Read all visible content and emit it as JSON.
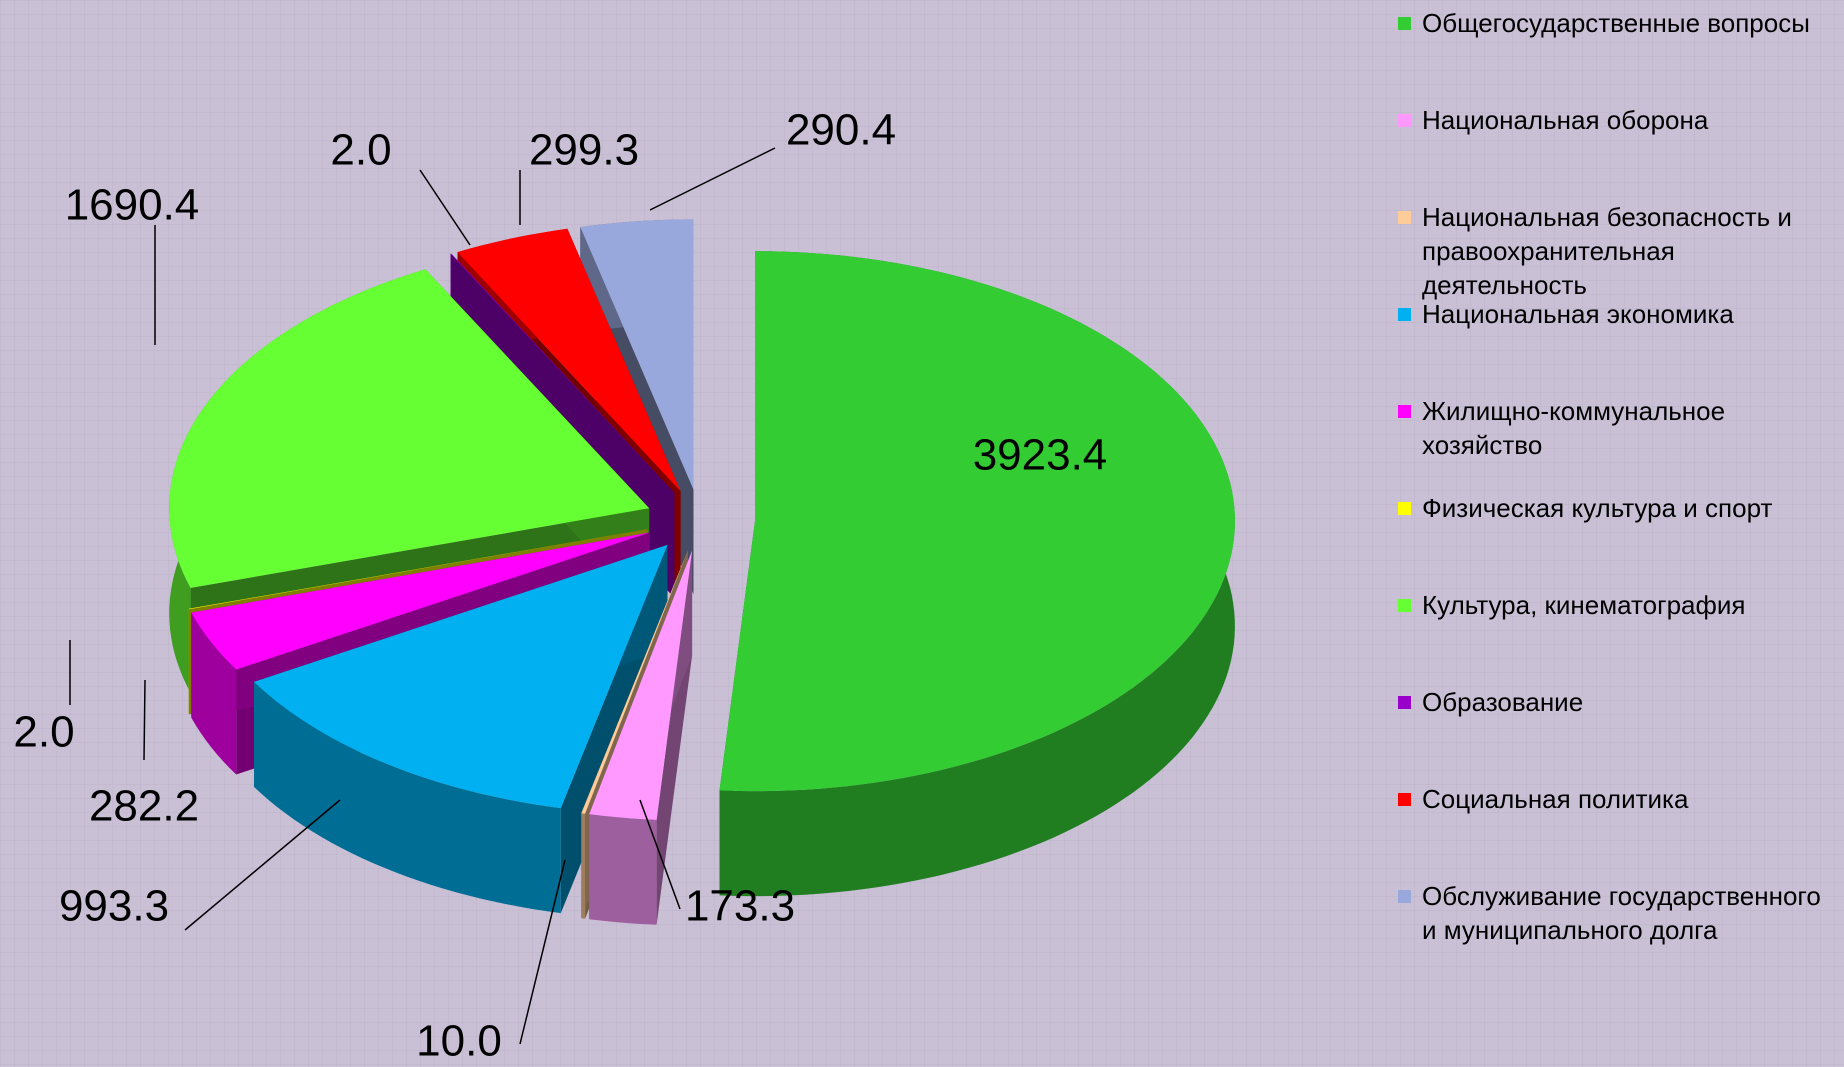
{
  "chart_data": {
    "type": "pie3d",
    "categories": [
      "Общегосударственные вопросы",
      "Национальная оборона",
      "Национальная безопасность и правоохранительная деятельность",
      "Национальная экономика",
      "Жилищно-коммунальное хозяйство",
      "Физическая культура и спорт",
      "Культура, кинематография",
      "Образование",
      "Социальная политика",
      "Обслуживание государственного и муниципального долга"
    ],
    "values": [
      3923.4,
      173.3,
      10.0,
      993.3,
      282.2,
      2.0,
      1690.4,
      2.0,
      299.3,
      290.4
    ],
    "value_labels": [
      "3923.4",
      "173.3",
      "10.0",
      "993.3",
      "282.2",
      "2.0",
      "1690.4",
      "2.0",
      "299.3",
      "290.4"
    ],
    "colors": [
      "#33cc33",
      "#ff99ff",
      "#ffcc99",
      "#00b0f0",
      "#ff00ff",
      "#ffff00",
      "#66ff33",
      "#9900cc",
      "#ff0000",
      "#99a8dc"
    ],
    "legend": "right"
  }
}
